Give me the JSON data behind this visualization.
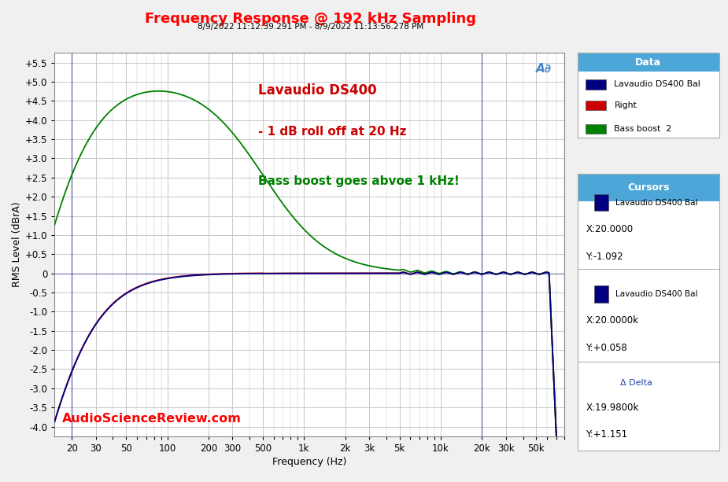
{
  "title": "Frequency Response @ 192 kHz Sampling",
  "subtitle": "8/9/2022 11:12:39.291 PM - 8/9/2022 11:13:56.278 PM",
  "title_color": "#FF0000",
  "subtitle_color": "#000000",
  "xlabel": "Frequency (Hz)",
  "ylabel": "RMS Level (dBrA)",
  "ylim": [
    -4.25,
    5.75
  ],
  "yticks": [
    -4.0,
    -3.5,
    -3.0,
    -2.5,
    -2.0,
    -1.5,
    -1.0,
    -0.5,
    0.0,
    0.5,
    1.0,
    1.5,
    2.0,
    2.5,
    3.0,
    3.5,
    4.0,
    4.5,
    5.0,
    5.5
  ],
  "ytick_labels": [
    "-4.0",
    "-3.5",
    "-3.0",
    "-2.5",
    "-2.0",
    "-1.5",
    "-1.0",
    "-0.5",
    "0",
    "+0.5",
    "+1.0",
    "+1.5",
    "+2.0",
    "+2.5",
    "+3.0",
    "+3.5",
    "+4.0",
    "+4.5",
    "+5.0",
    "+5.5"
  ],
  "freq_ticks": [
    20,
    30,
    50,
    100,
    200,
    300,
    500,
    1000,
    2000,
    3000,
    5000,
    10000,
    20000,
    30000,
    50000
  ],
  "freq_tick_labels": [
    "20",
    "30",
    "50",
    "100",
    "200",
    "300",
    "500",
    "1k",
    "2k",
    "3k",
    "5k",
    "10k",
    "20k",
    "30k",
    "50k"
  ],
  "xlim": [
    15,
    80000
  ],
  "bg_color": "#F0F0F0",
  "plot_bg_color": "#FFFFFF",
  "grid_color": "#C8C8C8",
  "line1_color": "#000080",
  "line2_color": "#CC0000",
  "line3_color": "#008000",
  "cursor_vline_color": "#4444AA",
  "cursor_hline_color": "#4444AA",
  "cursor_x1": 20,
  "cursor_x2": 20000,
  "annotation1": "Lavaudio DS400",
  "annotation2": "- 1 dB roll off at 20 Hz",
  "annotation3": "Bass boost goes abvoe 1 kHz!",
  "annotation_color1": "#CC0000",
  "annotation_color2": "#CC0000",
  "annotation_color3": "#008000",
  "watermark": "AudioScienceReview.com",
  "watermark_color": "#FF0000",
  "legend_title": "Data",
  "legend_labels": [
    "Lavaudio DS400 Bal",
    "Right",
    "Bass boost  2"
  ],
  "legend_colors": [
    "#000080",
    "#CC0000",
    "#008000"
  ],
  "cursor_title": "Cursors",
  "cursor_label1": "Lavaudio DS400 Bal",
  "cursor_x1_val": "X:20.0000",
  "cursor_y1_val": "Y:-1.092",
  "cursor_label2": "Lavaudio DS400 Bal",
  "cursor_x2_val": "X:20.0000k",
  "cursor_y2_val": "Y:+0.058",
  "delta_label": "Δ Delta",
  "delta_x_val": "X:19.9800k",
  "delta_y_val": "Y:+1.151",
  "panel_header_color": "#4DA6D8",
  "panel_border_color": "#AAAAAA",
  "ap_logo_color": "#4488CC"
}
